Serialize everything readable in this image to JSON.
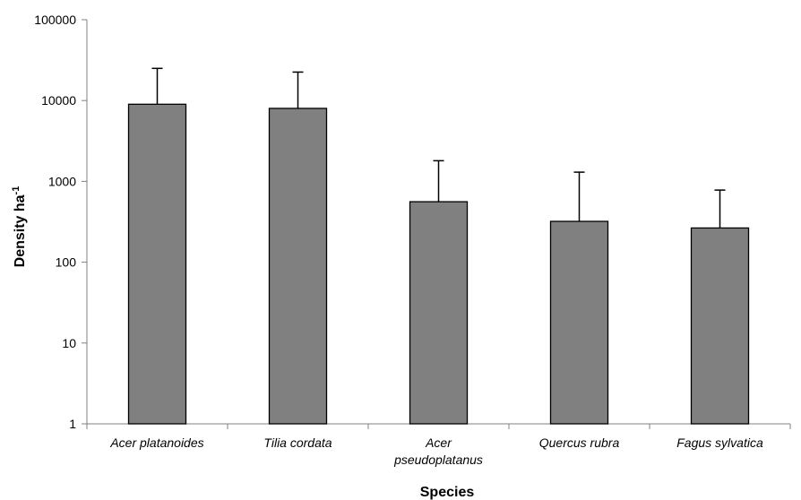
{
  "chart_data": {
    "type": "bar",
    "xlabel": "Species",
    "ylabel": {
      "text": "Density ha",
      "superscript": "-1"
    },
    "yscale": "log",
    "ylim": [
      1,
      100000
    ],
    "y_ticks": [
      "1",
      "10",
      "100",
      "1000",
      "10000",
      "100000"
    ],
    "categories": [
      [
        "Acer platanoides"
      ],
      [
        "Tilia cordata"
      ],
      [
        "Acer",
        "pseudoplatanus"
      ],
      [
        "Quercus rubra"
      ],
      [
        "Fagus sylvatica"
      ]
    ],
    "values": [
      9000,
      8000,
      560,
      320,
      265
    ],
    "error_upper": [
      25000,
      22500,
      1800,
      1300,
      780
    ],
    "bar_color": "#808080",
    "bar_outline": "#000000",
    "grid": false,
    "legend": "none"
  }
}
